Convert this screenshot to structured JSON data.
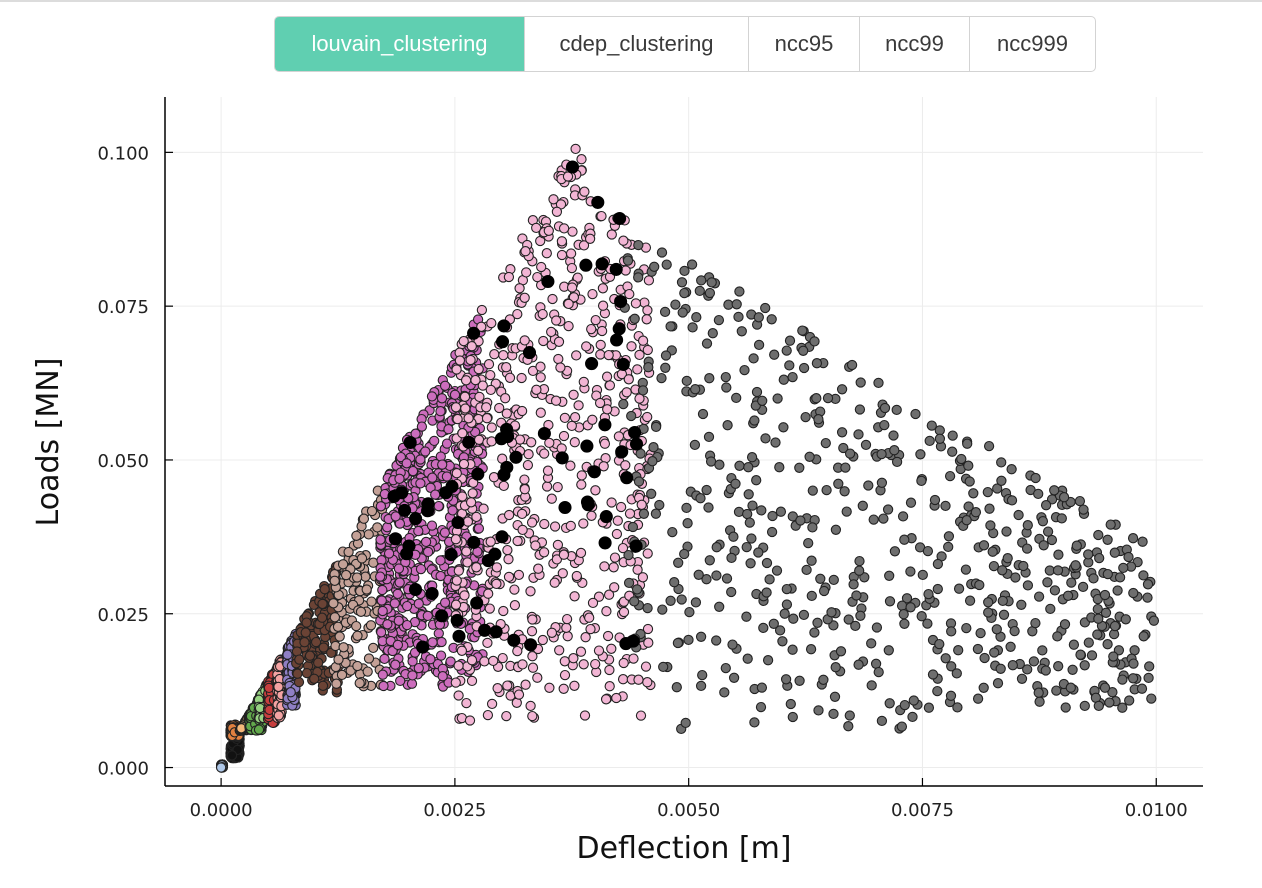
{
  "tabs": [
    {
      "label": "louvain_clustering",
      "active": true
    },
    {
      "label": "cdep_clustering",
      "active": false
    },
    {
      "label": "ncc95",
      "active": false
    },
    {
      "label": "ncc99",
      "active": false
    },
    {
      "label": "ncc999",
      "active": false
    }
  ],
  "colors": {
    "tab_active": "#60cfb1"
  },
  "chart_data": {
    "type": "scatter",
    "xlabel": "Deflection [m]",
    "ylabel": "Loads [MN]",
    "xlim": [
      -0.0006,
      0.0105
    ],
    "ylim": [
      -0.003,
      0.109
    ],
    "xticks": [
      0.0,
      0.0025,
      0.005,
      0.0075,
      0.01
    ],
    "xtick_labels": [
      "0.0000",
      "0.0025",
      "0.0050",
      "0.0075",
      "0.0100"
    ],
    "yticks": [
      0.0,
      0.025,
      0.05,
      0.075,
      0.1
    ],
    "ytick_labels": [
      "0.000",
      "0.025",
      "0.050",
      "0.075",
      "0.100"
    ],
    "grid": true,
    "legend": "none",
    "marker": "circle with dark outline",
    "clusters": [
      {
        "color": "#aec7e8",
        "x_range": [
          0.0,
          2e-05
        ],
        "y_range": [
          0.0,
          0.0005
        ]
      },
      {
        "color": "#111111",
        "x_range": [
          0.0001,
          0.0002
        ],
        "y_range": [
          0.0015,
          0.006
        ]
      },
      {
        "color": "#e08040",
        "x_range": [
          0.0001,
          0.0002
        ],
        "y_range": [
          0.005,
          0.011
        ]
      },
      {
        "color": "#f5b87a",
        "x_range": [
          0.0002,
          0.0003
        ],
        "y_range": [
          0.006,
          0.02
        ]
      },
      {
        "color": "#62a84c",
        "x_range": [
          0.0003,
          0.00045
        ],
        "y_range": [
          0.006,
          0.024
        ]
      },
      {
        "color": "#98d383",
        "x_range": [
          0.0004,
          0.0005
        ],
        "y_range": [
          0.008,
          0.028
        ]
      },
      {
        "color": "#c73e3e",
        "x_range": [
          0.0005,
          0.0006
        ],
        "y_range": [
          0.007,
          0.031
        ]
      },
      {
        "color": "#f4a3a3",
        "x_range": [
          0.0006,
          0.00065
        ],
        "y_range": [
          0.008,
          0.034
        ]
      },
      {
        "color": "#8f7fc4",
        "x_range": [
          0.0007,
          0.0008
        ],
        "y_range": [
          0.01,
          0.039
        ]
      },
      {
        "color": "#6b4335",
        "x_range": [
          0.0008,
          0.00125
        ],
        "y_range": [
          0.012,
          0.045
        ]
      },
      {
        "color": "#c4a197",
        "x_range": [
          0.0012,
          0.00175
        ],
        "y_range": [
          0.013,
          0.058
        ]
      },
      {
        "color": "#cc6dbd",
        "x_range": [
          0.0017,
          0.0028
        ],
        "y_range": [
          0.013,
          0.09
        ]
      },
      {
        "color": "#f2b5d4",
        "x_range": [
          0.0025,
          0.0046
        ],
        "y_range": [
          0.0075,
          0.103
        ]
      },
      {
        "color": "#6e6e6e",
        "x_range": [
          0.0043,
          0.01
        ],
        "y_range": [
          0.0055,
          0.087
        ]
      },
      {
        "color": "#000000",
        "x_range": [
          0.0018,
          0.0045
        ],
        "y_range": [
          0.017,
          0.106
        ]
      }
    ]
  }
}
